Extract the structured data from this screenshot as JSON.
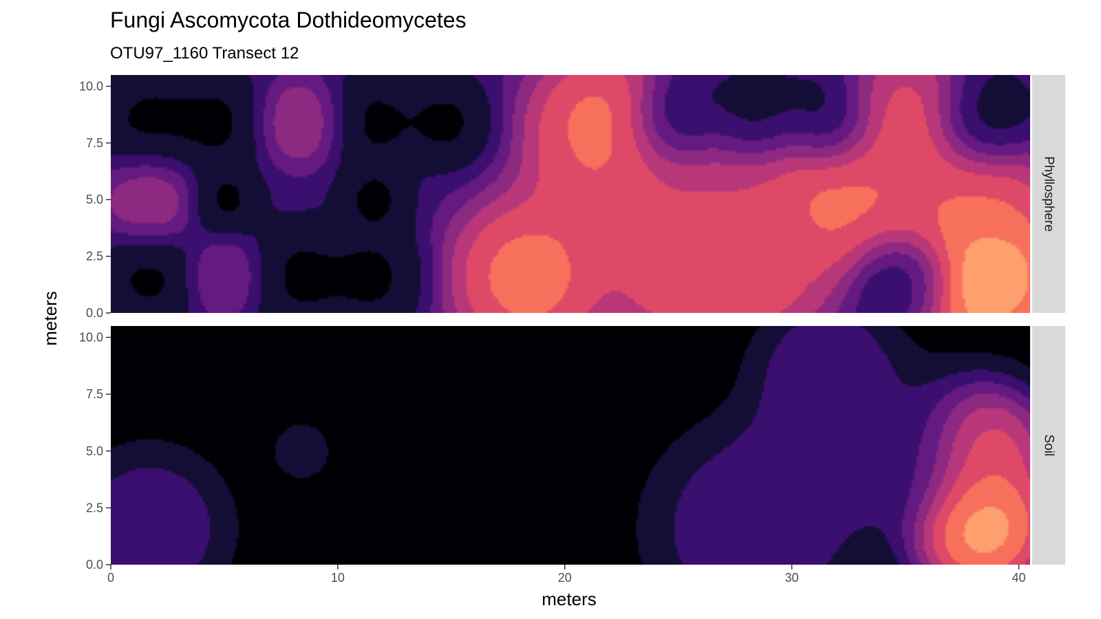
{
  "chart_data": {
    "type": "heatmap",
    "title": "Fungi Ascomycota Dothideomycetes",
    "subtitle": "OTU97_1160 Transect 12",
    "xlabel": "meters",
    "ylabel": "meters",
    "xlim": [
      0,
      40.5
    ],
    "ylim": [
      0,
      10.5
    ],
    "x_ticks": [
      "0",
      "10",
      "20",
      "30",
      "40"
    ],
    "y_ticks": [
      "0.0",
      "2.5",
      "5.0",
      "7.5",
      "10.0"
    ],
    "palette": [
      "#000004",
      "#140e36",
      "#3b0f70",
      "#641a80",
      "#8c2981",
      "#b73779",
      "#de4968",
      "#f7705c",
      "#fe9f6d",
      "#fecf92",
      "#fcfdbf"
    ],
    "colors": {
      "strip_background": "#d9d9d9",
      "panel_divider": "#ffffff",
      "axis_tick": "#333333"
    },
    "panels": [
      {
        "name": "Phyllosphere",
        "baseline": 2.0,
        "hotspots": [
          {
            "x": 1.7,
            "y": 1.6,
            "v": 0.0,
            "r": 2.4
          },
          {
            "x": 1.7,
            "y": 8.4,
            "v": 0.0,
            "r": 2.6
          },
          {
            "x": 4.6,
            "y": 8.4,
            "v": 0.0,
            "r": 2.4
          },
          {
            "x": 5.0,
            "y": 5.0,
            "v": 0.0,
            "r": 1.8
          },
          {
            "x": 1.7,
            "y": 5.0,
            "v": 5.0,
            "r": 2.2
          },
          {
            "x": 5.0,
            "y": 1.6,
            "v": 4.0,
            "r": 1.8
          },
          {
            "x": 8.4,
            "y": 8.4,
            "v": 5.0,
            "r": 2.0
          },
          {
            "x": 8.4,
            "y": 1.6,
            "v": 0.0,
            "r": 2.6
          },
          {
            "x": 11.6,
            "y": 1.6,
            "v": 0.0,
            "r": 2.6
          },
          {
            "x": 11.6,
            "y": 8.4,
            "v": 0.0,
            "r": 2.4
          },
          {
            "x": 11.6,
            "y": 5.0,
            "v": 0.0,
            "r": 1.8
          },
          {
            "x": 14.8,
            "y": 8.4,
            "v": 0.0,
            "r": 2.2
          },
          {
            "x": 18.4,
            "y": 1.6,
            "v": 8.2,
            "r": 3.8
          },
          {
            "x": 21.6,
            "y": 8.3,
            "v": 8.0,
            "r": 3.6
          },
          {
            "x": 21.6,
            "y": 5.0,
            "v": 7.0,
            "r": 3.4
          },
          {
            "x": 25.0,
            "y": 1.7,
            "v": 7.0,
            "r": 3.6
          },
          {
            "x": 28.3,
            "y": 1.7,
            "v": 7.0,
            "r": 3.6
          },
          {
            "x": 25.0,
            "y": 5.0,
            "v": 6.0,
            "r": 4.0
          },
          {
            "x": 28.3,
            "y": 5.0,
            "v": 6.0,
            "r": 4.0
          },
          {
            "x": 25.0,
            "y": 8.4,
            "v": 0.0,
            "r": 2.4
          },
          {
            "x": 28.3,
            "y": 8.4,
            "v": 0.0,
            "r": 2.4
          },
          {
            "x": 31.6,
            "y": 8.4,
            "v": 0.0,
            "r": 2.4
          },
          {
            "x": 31.6,
            "y": 5.0,
            "v": 8.0,
            "r": 3.6
          },
          {
            "x": 35.0,
            "y": 8.3,
            "v": 7.0,
            "r": 3.4
          },
          {
            "x": 35.0,
            "y": 5.0,
            "v": 7.0,
            "r": 3.4
          },
          {
            "x": 35.0,
            "y": 1.6,
            "v": 0.0,
            "r": 2.4
          },
          {
            "x": 38.4,
            "y": 1.7,
            "v": 10.0,
            "r": 3.8
          },
          {
            "x": 38.4,
            "y": 5.0,
            "v": 7.0,
            "r": 3.2
          },
          {
            "x": 38.4,
            "y": 8.4,
            "v": 0.0,
            "r": 2.4
          }
        ]
      },
      {
        "name": "Soil",
        "baseline": 0.0,
        "hotspots": [
          {
            "x": 1.7,
            "y": 1.6,
            "v": 3.0,
            "r": 3.2
          },
          {
            "x": 8.4,
            "y": 5.0,
            "v": 1.0,
            "r": 1.4
          },
          {
            "x": 28.3,
            "y": 1.6,
            "v": 3.0,
            "r": 4.2
          },
          {
            "x": 31.6,
            "y": 8.4,
            "v": 3.0,
            "r": 3.0
          },
          {
            "x": 31.6,
            "y": 5.0,
            "v": 3.0,
            "r": 3.6
          },
          {
            "x": 35.0,
            "y": 5.0,
            "v": 2.0,
            "r": 3.6
          },
          {
            "x": 38.4,
            "y": 1.7,
            "v": 10.0,
            "r": 3.2
          },
          {
            "x": 38.4,
            "y": 5.0,
            "v": 7.5,
            "r": 3.0
          }
        ]
      }
    ]
  }
}
